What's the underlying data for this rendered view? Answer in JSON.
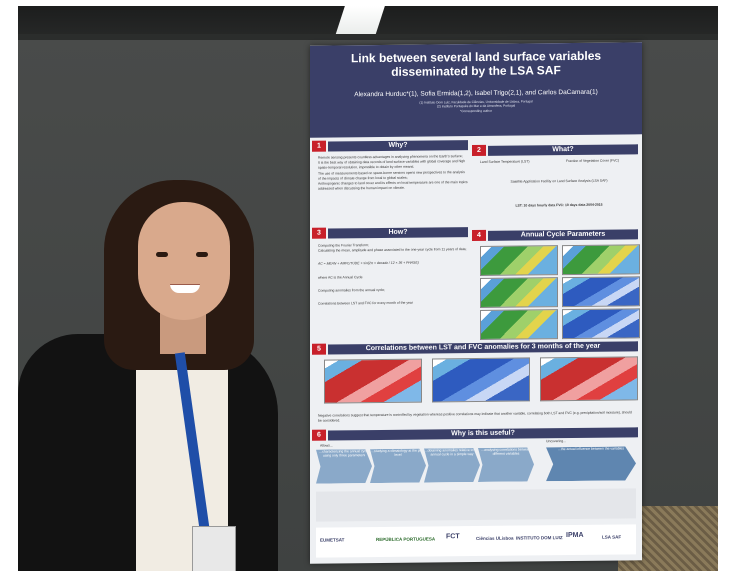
{
  "poster": {
    "title": "Link between several land surface variables disseminated by the LSA SAF",
    "authors": "Alexandra Hurduc*(1), Sofia Ermida(1,2), Isabel Trigo(2,1), and Carlos DaCamara(1)",
    "affiliation_1": "(1) Instituto Dom Luiz, Faculdade de Ciências, Universidade de Lisboa, Portugal",
    "affiliation_2": "(2) Instituto Português do Mar e da Atmosfera, Portugal",
    "corresponding": "*Corresponding author",
    "sections": [
      {
        "num": "1",
        "title": "Why?"
      },
      {
        "num": "2",
        "title": "What?"
      },
      {
        "num": "3",
        "title": "How?"
      },
      {
        "num": "4",
        "title": "Annual Cycle Parameters"
      },
      {
        "num": "5",
        "title": "Correlations between LST and FVC anomalies for 3 months of the year"
      },
      {
        "num": "6",
        "title": "Why is this useful?"
      }
    ],
    "why_text": [
      "Remote sensing presents countless advantages in analyzing phenomena on the Earth's surface;",
      "It is the best way of obtaining data records of land surface variables with global coverage and high spatio-temporal resolution, impossible to obtain by other means;",
      "The use of measurements based on space-borne sensors opens new perspectives to the analysis of the impacts of climate change from local to global scales;",
      "Anthropogenic changes to land cover and its effects on local temperature are one of the main topics addressed when discussing the human impact on climate."
    ],
    "what_lst": "Land Surface Temperature (LST)",
    "what_fvc": "Fraction of Vegetation Cover (FVC)",
    "what_text": "Satellite Application Facility on Land Surface Analysis (LSA SAF)",
    "what_resolution": "LST: 10 days hourly data  FVC: 10 days data 2004-2015",
    "how_items": [
      "Computing the Fourier Transform;",
      "Calculating the mean, amplitude and phase associated to the one-year cycle from 11 years of data;",
      "where AC is the Annual Cycle",
      "Computing anomalies from the annual cycle;",
      "Correlations between LST and FVC for every month of the year"
    ],
    "formula": "AC = MEAN + AMPLITUDE × sin(2π × decade / 12 × 36 + PHASE)",
    "correlation_note": "Negative correlations suggest that temperature is controlled by vegetation whereas positive correlations may indicate that another variable, correlating both LST and FVC (e.g. precipitation/soil moisture), should be considered.",
    "useful_allows": "Allows...",
    "useful_uncovering": "Uncovering...",
    "useful_steps": [
      "...characterizing the annual cycle using only three parameters",
      "...studying a climatology at the pixel level",
      "...obtaining anomalies relative to the annual cycle in a simple way",
      "...analysing correlations between different variables"
    ],
    "useful_result": "...the actual influence between the variables"
  }
}
